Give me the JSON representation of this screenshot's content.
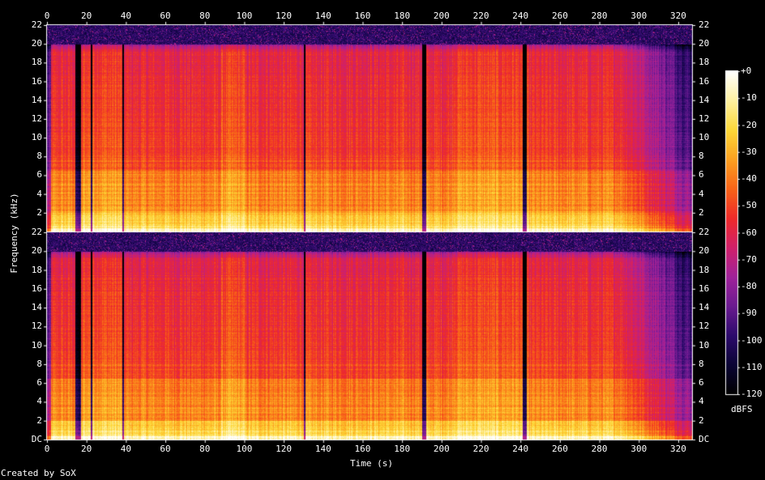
{
  "chart_data": {
    "type": "heatmap",
    "title": "",
    "xlabel": "Time (s)",
    "ylabel": "Frequency (kHz)",
    "colorbar_label": "dBFS",
    "footer": "Created by SoX",
    "xlim": [
      0,
      327
    ],
    "ylim_khz": [
      0,
      22
    ],
    "x_ticks": [
      0,
      20,
      40,
      60,
      80,
      100,
      120,
      140,
      160,
      180,
      200,
      220,
      240,
      260,
      280,
      300,
      320
    ],
    "y_ticks": [
      "DC",
      "2",
      "4",
      "6",
      "8",
      "10",
      "12",
      "14",
      "16",
      "18",
      "20",
      "22"
    ],
    "colorbar_ticks": [
      "+0",
      "-10",
      "-20",
      "-30",
      "-40",
      "-50",
      "-60",
      "-70",
      "-80",
      "-90",
      "-100",
      "-110",
      "-120"
    ],
    "colorbar_range_dbfs": [
      -120,
      0
    ],
    "channels": 2,
    "lowpass_cutoff_khz": 20,
    "quiet_segments_s": [
      [
        14,
        17
      ],
      [
        22,
        23
      ],
      [
        38,
        39
      ],
      [
        130,
        131
      ],
      [
        190,
        192
      ],
      [
        241,
        243
      ]
    ],
    "colors": {
      "background": "#000000",
      "text": "#ffffff",
      "colormap": [
        "#000000",
        "#0a0434",
        "#2c0a6c",
        "#6a1a90",
        "#a0229a",
        "#d0206a",
        "#ee2a2a",
        "#f86418",
        "#fca020",
        "#fdd838",
        "#fef0a0",
        "#ffffff"
      ]
    }
  }
}
